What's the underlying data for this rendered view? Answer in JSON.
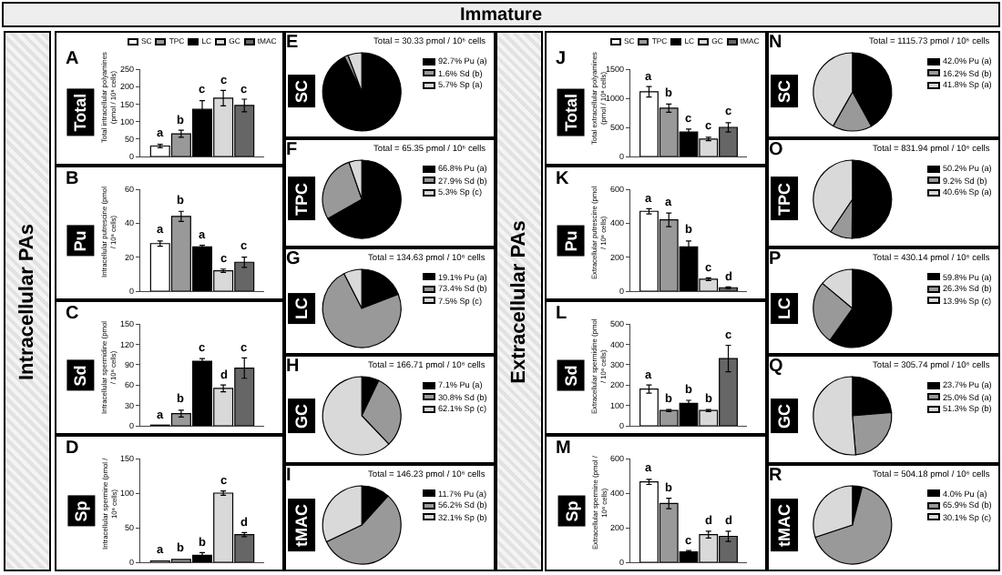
{
  "chart_data": [
    {
      "type": "other",
      "title": "Immature",
      "annotations": [
        "Intracellular PAs",
        "Extracellular PAs"
      ]
    },
    {
      "type": "bar",
      "title": "A",
      "subtitle": "Total",
      "ylabel": "Total intracellular polyamines (pmol / 10⁶ cells)",
      "categories": [
        null
      ],
      "legend": "top",
      "ylim": [
        0,
        250
      ],
      "yticks": [
        0,
        50,
        100,
        150,
        200,
        250
      ],
      "series": [
        {
          "name": "SC",
          "color": "#ffffff",
          "values": [
            30
          ],
          "errors": [
            5
          ],
          "value_labels": [
            "a"
          ]
        },
        {
          "name": "TPC",
          "color": "#999999",
          "values": [
            65
          ],
          "errors": [
            10
          ],
          "value_labels": [
            "b"
          ]
        },
        {
          "name": "LC",
          "color": "#000000",
          "values": [
            135
          ],
          "errors": [
            25
          ],
          "value_labels": [
            "c"
          ]
        },
        {
          "name": "GC",
          "color": "#d9d9d9",
          "values": [
            167
          ],
          "errors": [
            22
          ],
          "value_labels": [
            "c"
          ]
        },
        {
          "name": "tMAC",
          "color": "#666666",
          "values": [
            146
          ],
          "errors": [
            18
          ],
          "value_labels": [
            "c"
          ]
        }
      ]
    },
    {
      "type": "bar",
      "title": "B",
      "subtitle": "Pu",
      "ylabel": "Intracellular putrescine (pmol / 10⁶ cells)",
      "categories": [
        null
      ],
      "ylim": [
        0,
        60
      ],
      "yticks": [
        0,
        20,
        40,
        60
      ],
      "series": [
        {
          "color": "#ffffff",
          "values": [
            28
          ],
          "errors": [
            1.5
          ],
          "value_labels": [
            "a"
          ]
        },
        {
          "color": "#999999",
          "values": [
            44
          ],
          "errors": [
            3
          ],
          "value_labels": [
            "b"
          ]
        },
        {
          "color": "#000000",
          "values": [
            26
          ],
          "errors": [
            1
          ],
          "value_labels": [
            "a"
          ]
        },
        {
          "color": "#d9d9d9",
          "values": [
            12
          ],
          "errors": [
            1
          ],
          "value_labels": [
            "c"
          ]
        },
        {
          "color": "#666666",
          "values": [
            17
          ],
          "errors": [
            3
          ],
          "value_labels": [
            "c"
          ]
        }
      ]
    },
    {
      "type": "bar",
      "title": "C",
      "subtitle": "Sd",
      "ylabel": "Intracellular spermidine (pmol / 10⁶ cells)",
      "categories": [
        null
      ],
      "ylim": [
        0,
        150
      ],
      "yticks": [
        0,
        30,
        60,
        90,
        120,
        150
      ],
      "series": [
        {
          "color": "#ffffff",
          "values": [
            1
          ],
          "value_labels": [
            "a"
          ]
        },
        {
          "color": "#999999",
          "values": [
            18
          ],
          "errors": [
            5
          ],
          "value_labels": [
            "b"
          ]
        },
        {
          "color": "#000000",
          "values": [
            95
          ],
          "errors": [
            4
          ],
          "value_labels": [
            "c"
          ]
        },
        {
          "color": "#d9d9d9",
          "values": [
            55
          ],
          "errors": [
            5
          ],
          "value_labels": [
            "d"
          ]
        },
        {
          "color": "#666666",
          "values": [
            85
          ],
          "errors": [
            15
          ],
          "value_labels": [
            "c"
          ]
        }
      ]
    },
    {
      "type": "bar",
      "title": "D",
      "subtitle": "Sp",
      "ylabel": "Intracellular spermine (pmol / 10⁶ cells)",
      "categories": [
        null
      ],
      "ylim": [
        0,
        150
      ],
      "yticks": [
        0,
        50,
        100,
        150
      ],
      "series": [
        {
          "color": "#ffffff",
          "values": [
            2
          ],
          "value_labels": [
            "a"
          ]
        },
        {
          "color": "#999999",
          "values": [
            4
          ],
          "value_labels": [
            "b"
          ]
        },
        {
          "color": "#000000",
          "values": [
            10
          ],
          "errors": [
            4
          ],
          "value_labels": [
            "b"
          ]
        },
        {
          "color": "#d9d9d9",
          "values": [
            100
          ],
          "errors": [
            3
          ],
          "value_labels": [
            "c"
          ]
        },
        {
          "color": "#666666",
          "values": [
            40
          ],
          "errors": [
            3
          ],
          "value_labels": [
            "d"
          ]
        }
      ]
    },
    {
      "type": "pie",
      "title": "E",
      "subtitle": "SC",
      "annotations": [
        "Total = 30.33 pmol / 10⁶ cells"
      ],
      "legend": "top right",
      "categories": [
        "92.7% Pu (a)",
        "1.6% Sd (b)",
        "5.7% Sp (a)"
      ],
      "values": [
        92.7,
        1.6,
        5.7
      ],
      "colors": [
        "#000000",
        "#999999",
        "#d9d9d9"
      ]
    },
    {
      "type": "pie",
      "title": "F",
      "subtitle": "TPC",
      "annotations": [
        "Total = 65.35 pmol / 10⁶ cells"
      ],
      "legend": "top right",
      "categories": [
        "66.8% Pu (a)",
        "27.9% Sd (b)",
        "5.3% Sp (c)"
      ],
      "values": [
        66.8,
        27.9,
        5.3
      ],
      "colors": [
        "#000000",
        "#999999",
        "#d9d9d9"
      ]
    },
    {
      "type": "pie",
      "title": "G",
      "subtitle": "LC",
      "annotations": [
        "Total = 134.63 pmol / 10⁶ cells"
      ],
      "legend": "top right",
      "categories": [
        "19.1% Pu (a)",
        "73.4% Sd (b)",
        "7.5% Sp (c)"
      ],
      "values": [
        19.1,
        73.4,
        7.5
      ],
      "colors": [
        "#000000",
        "#999999",
        "#d9d9d9"
      ]
    },
    {
      "type": "pie",
      "title": "H",
      "subtitle": "GC",
      "annotations": [
        "Total = 166.71 pmol / 10⁶ cells"
      ],
      "legend": "top right",
      "categories": [
        "7.1% Pu (a)",
        "30.8% Sd (b)",
        "62.1% Sp (c)"
      ],
      "values": [
        7.1,
        30.8,
        62.1
      ],
      "colors": [
        "#000000",
        "#999999",
        "#d9d9d9"
      ]
    },
    {
      "type": "pie",
      "title": "I",
      "subtitle": "tMAC",
      "annotations": [
        "Total = 146.23 pmol / 10⁶ cells"
      ],
      "legend": "top right",
      "categories": [
        "11.7% Pu (a)",
        "56.2% Sd (b)",
        "32.1% Sp (b)"
      ],
      "values": [
        11.7,
        56.2,
        32.1
      ],
      "colors": [
        "#000000",
        "#999999",
        "#d9d9d9"
      ]
    },
    {
      "type": "bar",
      "title": "J",
      "subtitle": "Total",
      "ylabel": "Total extracellular polyamines (pmol / 10⁶ cells)",
      "categories": [
        null
      ],
      "legend": "top",
      "ylim": [
        0,
        1500
      ],
      "yticks": [
        0,
        500,
        1000,
        1500
      ],
      "series": [
        {
          "name": "SC",
          "color": "#ffffff",
          "values": [
            1110
          ],
          "errors": [
            90
          ],
          "value_labels": [
            "a"
          ]
        },
        {
          "name": "TPC",
          "color": "#999999",
          "values": [
            830
          ],
          "errors": [
            70
          ],
          "value_labels": [
            "b"
          ]
        },
        {
          "name": "LC",
          "color": "#000000",
          "values": [
            420
          ],
          "errors": [
            50
          ],
          "value_labels": [
            "c"
          ]
        },
        {
          "name": "GC",
          "color": "#d9d9d9",
          "values": [
            300
          ],
          "errors": [
            30
          ],
          "value_labels": [
            "c"
          ]
        },
        {
          "name": "tMAC",
          "color": "#666666",
          "values": [
            500
          ],
          "errors": [
            80
          ],
          "value_labels": [
            "c"
          ]
        }
      ]
    },
    {
      "type": "bar",
      "title": "K",
      "subtitle": "Pu",
      "ylabel": "Extracellular putrescine (pmol / 10⁶ cells)",
      "categories": [
        null
      ],
      "ylim": [
        0,
        600
      ],
      "yticks": [
        0,
        200,
        400,
        600
      ],
      "series": [
        {
          "color": "#ffffff",
          "values": [
            470
          ],
          "errors": [
            15
          ],
          "value_labels": [
            "a"
          ]
        },
        {
          "color": "#999999",
          "values": [
            420
          ],
          "errors": [
            40
          ],
          "value_labels": [
            "a"
          ]
        },
        {
          "color": "#000000",
          "values": [
            260
          ],
          "errors": [
            35
          ],
          "value_labels": [
            "b"
          ]
        },
        {
          "color": "#d9d9d9",
          "values": [
            70
          ],
          "errors": [
            8
          ],
          "value_labels": [
            "c"
          ]
        },
        {
          "color": "#666666",
          "values": [
            20
          ],
          "errors": [
            5
          ],
          "value_labels": [
            "d"
          ]
        }
      ]
    },
    {
      "type": "bar",
      "title": "L",
      "subtitle": "Sd",
      "ylabel": "Extracellular spermidine (pmol / 10⁶ cells)",
      "categories": [
        null
      ],
      "ylim": [
        0,
        500
      ],
      "yticks": [
        0,
        100,
        200,
        300,
        400,
        500
      ],
      "series": [
        {
          "color": "#ffffff",
          "values": [
            180
          ],
          "errors": [
            20
          ],
          "value_labels": [
            "a"
          ]
        },
        {
          "color": "#999999",
          "values": [
            75
          ],
          "errors": [
            5
          ],
          "value_labels": [
            "b"
          ]
        },
        {
          "color": "#000000",
          "values": [
            110
          ],
          "errors": [
            15
          ],
          "value_labels": [
            "b"
          ]
        },
        {
          "color": "#d9d9d9",
          "values": [
            75
          ],
          "errors": [
            5
          ],
          "value_labels": [
            "b"
          ]
        },
        {
          "color": "#666666",
          "values": [
            330
          ],
          "errors": [
            65
          ],
          "value_labels": [
            "c"
          ]
        }
      ]
    },
    {
      "type": "bar",
      "title": "M",
      "subtitle": "Sp",
      "ylabel": "Extracellular spermine (pmol / 10⁶ cells)",
      "categories": [
        null
      ],
      "ylim": [
        0,
        600
      ],
      "yticks": [
        0,
        200,
        400,
        600
      ],
      "series": [
        {
          "color": "#ffffff",
          "values": [
            465
          ],
          "errors": [
            15
          ],
          "value_labels": [
            "a"
          ]
        },
        {
          "color": "#999999",
          "values": [
            340
          ],
          "errors": [
            30
          ],
          "value_labels": [
            "b"
          ]
        },
        {
          "color": "#000000",
          "values": [
            60
          ],
          "errors": [
            8
          ],
          "value_labels": [
            "c"
          ]
        },
        {
          "color": "#d9d9d9",
          "values": [
            160
          ],
          "errors": [
            20
          ],
          "value_labels": [
            "d"
          ]
        },
        {
          "color": "#666666",
          "values": [
            150
          ],
          "errors": [
            30
          ],
          "value_labels": [
            "d"
          ]
        }
      ]
    },
    {
      "type": "pie",
      "title": "N",
      "subtitle": "SC",
      "annotations": [
        "Total = 1115.73 pmol / 10⁶ cells"
      ],
      "legend": "top right",
      "categories": [
        "42.0% Pu (a)",
        "16.2% Sd (b)",
        "41.8% Sp (a)"
      ],
      "values": [
        42.0,
        16.2,
        41.8
      ],
      "colors": [
        "#000000",
        "#999999",
        "#d9d9d9"
      ]
    },
    {
      "type": "pie",
      "title": "O",
      "subtitle": "TPC",
      "annotations": [
        "Total = 831.94 pmol / 10⁶ cells"
      ],
      "legend": "top right",
      "categories": [
        "50.2% Pu (a)",
        "9.2% Sd (b)",
        "40.6% Sp (a)"
      ],
      "values": [
        50.2,
        9.2,
        40.6
      ],
      "colors": [
        "#000000",
        "#999999",
        "#d9d9d9"
      ]
    },
    {
      "type": "pie",
      "title": "P",
      "subtitle": "LC",
      "annotations": [
        "Total = 430.14 pmol / 10⁶ cells"
      ],
      "legend": "top right",
      "categories": [
        "59.8% Pu (a)",
        "26.3% Sd (b)",
        "13.9% Sp (c)"
      ],
      "values": [
        59.8,
        26.3,
        13.9
      ],
      "colors": [
        "#000000",
        "#999999",
        "#d9d9d9"
      ]
    },
    {
      "type": "pie",
      "title": "Q",
      "subtitle": "GC",
      "annotations": [
        "Total = 305.74 pmol / 10⁶ cells"
      ],
      "legend": "top right",
      "categories": [
        "23.7% Pu (a)",
        "25.0% Sd (a)",
        "51.3% Sp (b)"
      ],
      "values": [
        23.7,
        25.0,
        51.3
      ],
      "colors": [
        "#000000",
        "#999999",
        "#d9d9d9"
      ]
    },
    {
      "type": "pie",
      "title": "R",
      "subtitle": "tMAC",
      "annotations": [
        "Total = 504.18 pmol / 10⁶ cells"
      ],
      "legend": "top right",
      "categories": [
        "4.0% Pu (a)",
        "65.9% Sd (b)",
        "30.1% Sp (c)"
      ],
      "values": [
        4.0,
        65.9,
        30.1
      ],
      "colors": [
        "#000000",
        "#999999",
        "#d9d9d9"
      ]
    }
  ]
}
